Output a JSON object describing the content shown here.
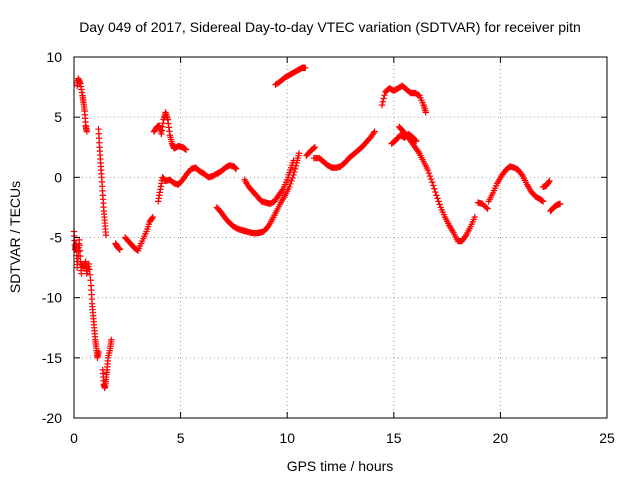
{
  "chart_data": {
    "type": "scatter",
    "title": "Day 049 of 2017, Sidereal Day-to-day VTEC variation (SDTVAR) for receiver pitn",
    "xlabel": "GPS time / hours",
    "ylabel": "SDTVAR / TECUs",
    "xlim": [
      0,
      25
    ],
    "ylim": [
      -20,
      10
    ],
    "xticks": [
      0,
      5,
      10,
      15,
      20,
      25
    ],
    "yticks": [
      -20,
      -15,
      -10,
      -5,
      0,
      5,
      10
    ],
    "grid": true,
    "marker": "+",
    "series": [
      {
        "name": "SDTVAR",
        "color": "#ff0000",
        "segments": [
          [
            [
              0.0,
              -4.5
            ],
            [
              0.05,
              -6
            ],
            [
              0.1,
              -5.5
            ],
            [
              0.15,
              -7.5
            ],
            [
              0.2,
              -6.5
            ],
            [
              0.25,
              -5.2
            ],
            [
              0.3,
              -7
            ],
            [
              0.35,
              -8
            ]
          ],
          [
            [
              0.15,
              7.6
            ],
            [
              0.2,
              8.2
            ],
            [
              0.3,
              7.8
            ],
            [
              0.4,
              6.8
            ],
            [
              0.45,
              6.2
            ],
            [
              0.5,
              5.5
            ],
            [
              0.55,
              4.3
            ],
            [
              0.6,
              3.8
            ]
          ],
          [
            [
              0.35,
              -7.2
            ],
            [
              0.45,
              -7.5
            ],
            [
              0.55,
              -7
            ],
            [
              0.6,
              -8
            ],
            [
              0.7,
              -7.2
            ],
            [
              0.8,
              -9
            ],
            [
              0.85,
              -10.5
            ],
            [
              0.9,
              -11.5
            ],
            [
              0.95,
              -12.5
            ],
            [
              1.0,
              -13.5
            ],
            [
              1.05,
              -14.2
            ],
            [
              1.1,
              -15
            ],
            [
              1.15,
              -14.5
            ]
          ],
          [
            [
              1.15,
              4
            ],
            [
              1.2,
              2.5
            ],
            [
              1.25,
              1.2
            ],
            [
              1.3,
              0
            ],
            [
              1.35,
              -1.5
            ],
            [
              1.4,
              -2.8
            ],
            [
              1.45,
              -3.8
            ],
            [
              1.5,
              -4.8
            ]
          ],
          [
            [
              1.35,
              -16
            ],
            [
              1.4,
              -17.2
            ],
            [
              1.45,
              -17.5
            ],
            [
              1.5,
              -16.8
            ],
            [
              1.55,
              -16
            ],
            [
              1.6,
              -15
            ],
            [
              1.7,
              -14.2
            ],
            [
              1.75,
              -13.5
            ]
          ],
          [
            [
              1.95,
              -5.5
            ],
            [
              2.05,
              -5.8
            ],
            [
              2.15,
              -6
            ]
          ],
          [
            [
              2.4,
              -5
            ],
            [
              2.6,
              -5.4
            ],
            [
              2.8,
              -5.8
            ],
            [
              3.0,
              -6.1
            ],
            [
              3.2,
              -5.3
            ],
            [
              3.4,
              -4.5
            ],
            [
              3.55,
              -3.7
            ],
            [
              3.7,
              -3.3
            ]
          ],
          [
            [
              3.75,
              3.8
            ],
            [
              3.9,
              4.2
            ],
            [
              4.0,
              4.3
            ],
            [
              4.1,
              3.6
            ],
            [
              4.2,
              4.8
            ],
            [
              4.3,
              5.4
            ],
            [
              4.4,
              4.8
            ],
            [
              4.5,
              3.5
            ],
            [
              4.6,
              2.8
            ],
            [
              4.7,
              2.4
            ],
            [
              4.9,
              2.6
            ],
            [
              5.1,
              2.5
            ],
            [
              5.25,
              2.3
            ]
          ],
          [
            [
              3.95,
              -2
            ],
            [
              4.05,
              -1
            ],
            [
              4.15,
              0
            ],
            [
              4.3,
              -0.3
            ],
            [
              4.5,
              -0.2
            ],
            [
              4.7,
              -0.5
            ],
            [
              4.9,
              -0.6
            ],
            [
              5.1,
              -0.2
            ],
            [
              5.3,
              0.3
            ],
            [
              5.5,
              0.7
            ],
            [
              5.7,
              0.8
            ],
            [
              5.9,
              0.5
            ],
            [
              6.1,
              0.3
            ],
            [
              6.3,
              0
            ],
            [
              6.5,
              0.1
            ],
            [
              6.7,
              0.3
            ],
            [
              6.9,
              0.5
            ],
            [
              7.1,
              0.8
            ],
            [
              7.3,
              1
            ],
            [
              7.5,
              0.9
            ],
            [
              7.6,
              0.7
            ]
          ],
          [
            [
              6.7,
              -2.5
            ],
            [
              6.9,
              -2.9
            ],
            [
              7.1,
              -3.4
            ],
            [
              7.3,
              -3.8
            ],
            [
              7.5,
              -4.1
            ],
            [
              7.7,
              -4.3
            ],
            [
              7.9,
              -4.4
            ],
            [
              8.1,
              -4.5
            ],
            [
              8.3,
              -4.6
            ],
            [
              8.5,
              -4.65
            ],
            [
              8.7,
              -4.6
            ],
            [
              8.9,
              -4.5
            ],
            [
              9.1,
              -4.1
            ],
            [
              9.3,
              -3.5
            ],
            [
              9.5,
              -2.8
            ],
            [
              9.7,
              -2.1
            ],
            [
              9.9,
              -1.5
            ],
            [
              10.1,
              -0.8
            ],
            [
              10.3,
              0.2
            ],
            [
              10.45,
              1.2
            ],
            [
              10.55,
              2
            ]
          ],
          [
            [
              8.0,
              -0.2
            ],
            [
              8.2,
              -0.8
            ],
            [
              8.4,
              -1.2
            ],
            [
              8.6,
              -1.6
            ],
            [
              8.8,
              -2
            ],
            [
              9.0,
              -2.1
            ],
            [
              9.2,
              -2.2
            ],
            [
              9.4,
              -2
            ],
            [
              9.6,
              -1.5
            ],
            [
              9.8,
              -1
            ],
            [
              10.0,
              -0.2
            ],
            [
              10.15,
              0.6
            ],
            [
              10.3,
              1.4
            ]
          ],
          [
            [
              9.45,
              7.7
            ],
            [
              9.7,
              8
            ],
            [
              9.9,
              8.3
            ],
            [
              10.1,
              8.5
            ],
            [
              10.3,
              8.7
            ],
            [
              10.5,
              8.9
            ],
            [
              10.7,
              9.1
            ],
            [
              10.85,
              9.1
            ]
          ],
          [
            [
              10.9,
              1.8
            ],
            [
              11.1,
              2.2
            ],
            [
              11.3,
              2.5
            ]
          ],
          [
            [
              11.25,
              1.6
            ],
            [
              11.5,
              1.6
            ],
            [
              11.7,
              1.3
            ],
            [
              11.9,
              1
            ],
            [
              12.1,
              0.8
            ],
            [
              12.3,
              0.8
            ],
            [
              12.5,
              0.9
            ],
            [
              12.7,
              1.2
            ],
            [
              12.9,
              1.6
            ],
            [
              13.1,
              1.9
            ],
            [
              13.3,
              2.2
            ],
            [
              13.5,
              2.5
            ],
            [
              13.7,
              2.9
            ],
            [
              13.9,
              3.3
            ],
            [
              14.1,
              3.8
            ]
          ],
          [
            [
              14.45,
              6
            ],
            [
              14.6,
              7.1
            ],
            [
              14.8,
              7.4
            ],
            [
              15.0,
              7.2
            ],
            [
              15.2,
              7.4
            ],
            [
              15.4,
              7.6
            ],
            [
              15.6,
              7.3
            ],
            [
              15.8,
              7
            ],
            [
              16.0,
              7
            ],
            [
              16.2,
              6.8
            ],
            [
              16.4,
              6
            ],
            [
              16.5,
              5.4
            ]
          ],
          [
            [
              14.9,
              2.8
            ],
            [
              15.1,
              3.1
            ],
            [
              15.3,
              3.5
            ],
            [
              15.5,
              3.3
            ],
            [
              15.7,
              3.6
            ],
            [
              15.9,
              3.3
            ],
            [
              16.05,
              3
            ]
          ],
          [
            [
              15.25,
              4.2
            ],
            [
              15.4,
              3.9
            ],
            [
              15.6,
              3.5
            ],
            [
              15.8,
              3
            ],
            [
              16.0,
              2.5
            ],
            [
              16.2,
              2
            ],
            [
              16.4,
              1.3
            ],
            [
              16.6,
              0.6
            ],
            [
              16.8,
              -0.4
            ],
            [
              17.0,
              -1.5
            ],
            [
              17.2,
              -2.5
            ],
            [
              17.4,
              -3.3
            ],
            [
              17.6,
              -4
            ],
            [
              17.8,
              -4.6
            ],
            [
              18.0,
              -5.3
            ],
            [
              18.2,
              -5.3
            ],
            [
              18.4,
              -4.8
            ],
            [
              18.6,
              -4.1
            ],
            [
              18.8,
              -3.3
            ]
          ],
          [
            [
              18.95,
              -2.1
            ],
            [
              19.15,
              -2.2
            ],
            [
              19.4,
              -2.6
            ]
          ],
          [
            [
              19.45,
              -2
            ],
            [
              19.65,
              -1.3
            ],
            [
              19.85,
              -0.5
            ],
            [
              20.05,
              0.1
            ],
            [
              20.25,
              0.6
            ],
            [
              20.45,
              0.9
            ],
            [
              20.65,
              0.8
            ],
            [
              20.85,
              0.6
            ],
            [
              21.05,
              0.1
            ],
            [
              21.25,
              -0.6
            ],
            [
              21.45,
              -1.2
            ],
            [
              21.65,
              -1.6
            ],
            [
              21.85,
              -1.8
            ],
            [
              22.0,
              -2
            ]
          ],
          [
            [
              22.0,
              -0.8
            ],
            [
              22.15,
              -0.7
            ],
            [
              22.3,
              -0.3
            ]
          ],
          [
            [
              22.35,
              -2.8
            ],
            [
              22.5,
              -2.5
            ],
            [
              22.65,
              -2.3
            ],
            [
              22.8,
              -2.2
            ]
          ]
        ]
      }
    ]
  }
}
